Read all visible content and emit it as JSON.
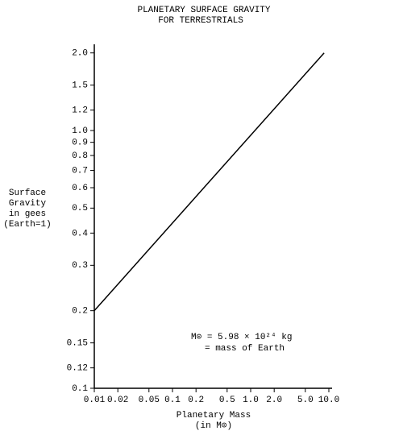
{
  "chart_data": {
    "type": "line",
    "title": [
      "PLANETARY SURFACE GRAVITY",
      "FOR TERRESTRIALS"
    ],
    "x_label": [
      "Planetary Mass",
      "(in M⊙)"
    ],
    "y_label": [
      "Surface",
      "Gravity",
      "in gees",
      "(Earth=1)"
    ],
    "annotation": [
      "M⊙ = 5.98 × 10²⁴ kg",
      "= mass of Earth"
    ],
    "x": [
      0.01,
      8.7
    ],
    "series": [
      {
        "color": "#000000",
        "values": [
          0.2,
          2.0
        ]
      }
    ],
    "xlog": true,
    "ylog": true,
    "xlim": [
      0.01,
      11
    ],
    "ylim": [
      0.1,
      2.16
    ],
    "xticks": [
      0.01,
      0.02,
      0.05,
      0.1,
      0.2,
      0.5,
      {
        "value": 1,
        "label": "1.0"
      },
      {
        "value": 2,
        "label": "2.0"
      },
      {
        "value": 5,
        "label": "5.0"
      },
      {
        "value": 10,
        "label": "10.0"
      }
    ],
    "yticks": [
      0.1,
      0.12,
      0.15,
      0.2,
      0.3,
      0.4,
      0.5,
      0.6,
      0.7,
      0.8,
      0.9,
      {
        "value": 1,
        "label": "1.0"
      },
      1.2,
      1.5,
      {
        "value": 2,
        "label": "2.0"
      }
    ]
  }
}
